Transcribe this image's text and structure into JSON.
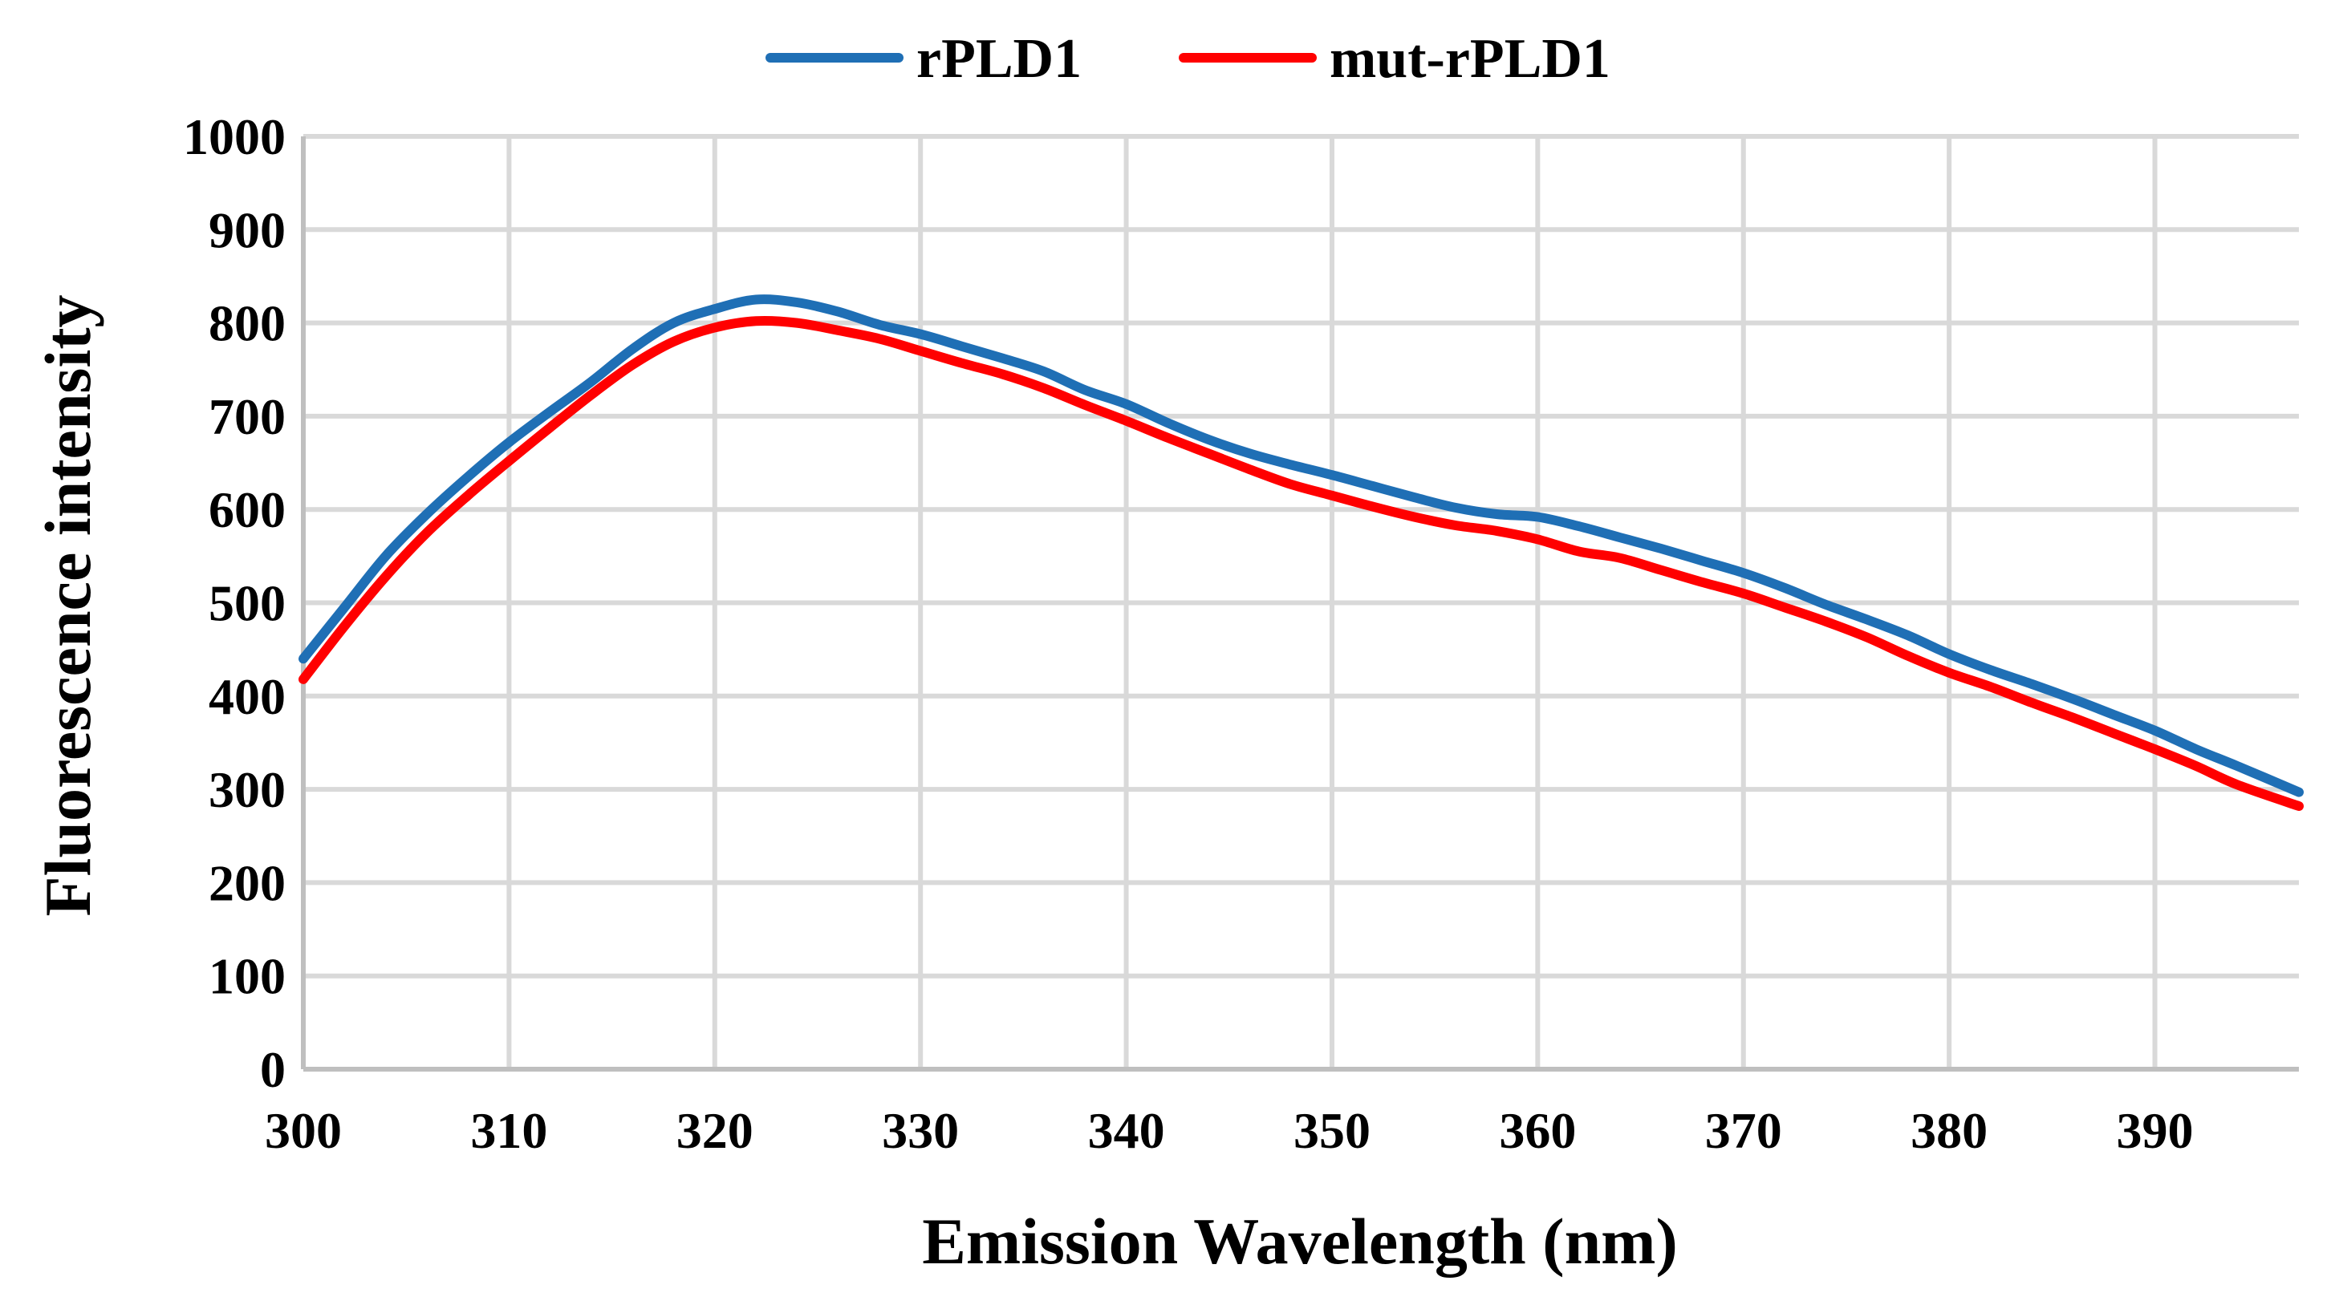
{
  "chart_data": {
    "type": "line",
    "title": "",
    "xlabel": "Emission Wavelength (nm)",
    "ylabel": "Fluorescence intensity",
    "xlim": [
      300,
      397
    ],
    "ylim": [
      0,
      1000
    ],
    "x_ticks": [
      300,
      310,
      320,
      330,
      340,
      350,
      360,
      370,
      380,
      390
    ],
    "y_ticks": [
      0,
      100,
      200,
      300,
      400,
      500,
      600,
      700,
      800,
      900,
      1000
    ],
    "grid": true,
    "legend_position": "top-center",
    "x": [
      300,
      302,
      304,
      306,
      308,
      310,
      312,
      314,
      316,
      318,
      320,
      322,
      324,
      326,
      328,
      330,
      332,
      334,
      336,
      338,
      340,
      342,
      344,
      346,
      348,
      350,
      352,
      354,
      356,
      358,
      360,
      362,
      364,
      366,
      368,
      370,
      372,
      374,
      376,
      378,
      380,
      382,
      384,
      386,
      388,
      390,
      392,
      394,
      397
    ],
    "series": [
      {
        "name": "rPLD1",
        "color": "#1f6fb5",
        "values": [
          440,
          495,
          550,
          595,
          635,
          672,
          705,
          737,
          772,
          800,
          815,
          825,
          822,
          812,
          798,
          788,
          775,
          762,
          748,
          728,
          713,
          693,
          675,
          660,
          648,
          637,
          625,
          613,
          602,
          595,
          592,
          582,
          570,
          558,
          545,
          532,
          516,
          498,
          482,
          465,
          445,
          428,
          413,
          397,
          380,
          363,
          343,
          325,
          297
        ]
      },
      {
        "name": "mut-rPLD1",
        "color": "#ff0000",
        "values": [
          418,
          475,
          528,
          575,
          615,
          652,
          688,
          723,
          755,
          780,
          795,
          802,
          800,
          792,
          783,
          770,
          757,
          745,
          730,
          712,
          695,
          677,
          660,
          643,
          627,
          615,
          603,
          592,
          583,
          577,
          568,
          555,
          548,
          535,
          522,
          510,
          495,
          480,
          463,
          443,
          425,
          410,
          393,
          377,
          360,
          343,
          325,
          305,
          282
        ]
      }
    ]
  }
}
